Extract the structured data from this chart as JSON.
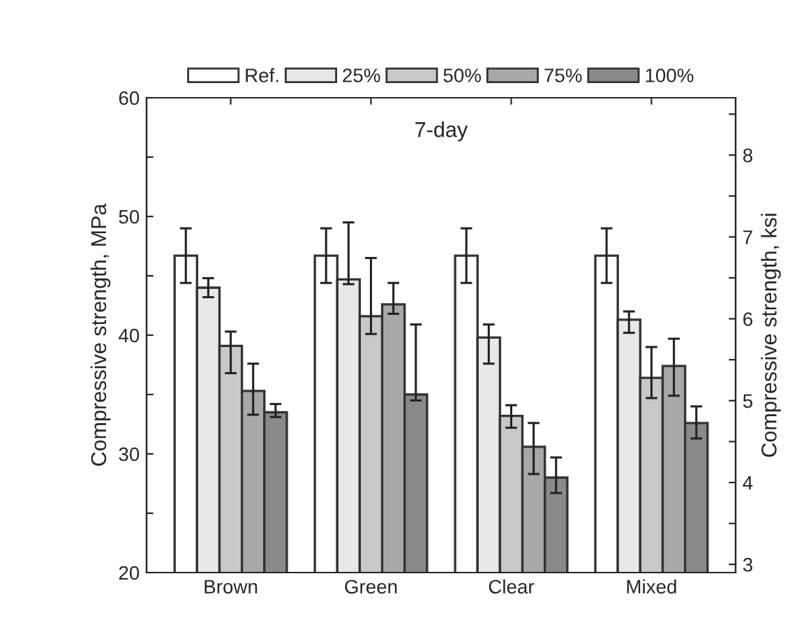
{
  "chart_data": {
    "type": "bar",
    "ylabel": "Compressive strength, MPa",
    "y2label": "Compressive strength, ksi",
    "annotations": [
      "7-day"
    ],
    "categories": [
      "Brown",
      "Green",
      "Clear",
      "Mixed"
    ],
    "series": [
      {
        "name": "Ref.",
        "color": "#ffffff",
        "values": [
          46.7,
          46.7,
          46.7,
          46.7
        ],
        "errors": [
          2.3,
          2.3,
          2.3,
          2.3
        ]
      },
      {
        "name": "25%",
        "color": "#e8e8ea",
        "values": [
          44.0,
          44.7,
          39.8,
          41.3
        ],
        "errors": [
          0.8,
          [
            44.3,
            49.5
          ],
          [
            37.6,
            40.9
          ],
          [
            40.2,
            42.0
          ]
        ]
      },
      {
        "name": "50%",
        "color": "#c8c8ca",
        "values": [
          39.1,
          41.6,
          33.2,
          36.4
        ],
        "errors": [
          [
            36.8,
            40.3
          ],
          [
            40.1,
            46.5
          ],
          [
            32.2,
            34.1
          ],
          [
            34.7,
            39.0
          ]
        ]
      },
      {
        "name": "75%",
        "color": "#a8a8aa",
        "values": [
          35.3,
          42.6,
          30.6,
          37.4
        ],
        "errors": [
          [
            33.3,
            37.6
          ],
          [
            41.8,
            44.4
          ],
          [
            28.3,
            32.6
          ],
          [
            34.9,
            39.7
          ]
        ]
      },
      {
        "name": "100%",
        "color": "#8a8a8c",
        "values": [
          33.5,
          35.0,
          28.0,
          32.6
        ],
        "errors": [
          [
            33.1,
            34.2
          ],
          [
            34.5,
            40.9
          ],
          [
            26.7,
            29.7
          ],
          [
            31.3,
            34.0
          ]
        ]
      }
    ],
    "ylim": [
      20,
      60
    ],
    "yticks": [
      20,
      {
        "value": 25,
        "label": null
      },
      30,
      {
        "value": 35,
        "label": null
      },
      40,
      {
        "value": 45,
        "label": null
      },
      50,
      {
        "value": 55,
        "label": null
      },
      60
    ],
    "y2lim": [
      2.9,
      8.7
    ],
    "y2ticks": [
      3,
      {
        "value": 3.5,
        "label": null
      },
      4,
      {
        "value": 4.5,
        "label": null
      },
      5,
      {
        "value": 5.5,
        "label": null
      },
      6,
      {
        "value": 6.5,
        "label": null
      },
      7,
      {
        "value": 7.5,
        "label": null
      },
      8,
      {
        "value": 8.5,
        "label": null
      }
    ],
    "legend": "top",
    "grid": false
  }
}
